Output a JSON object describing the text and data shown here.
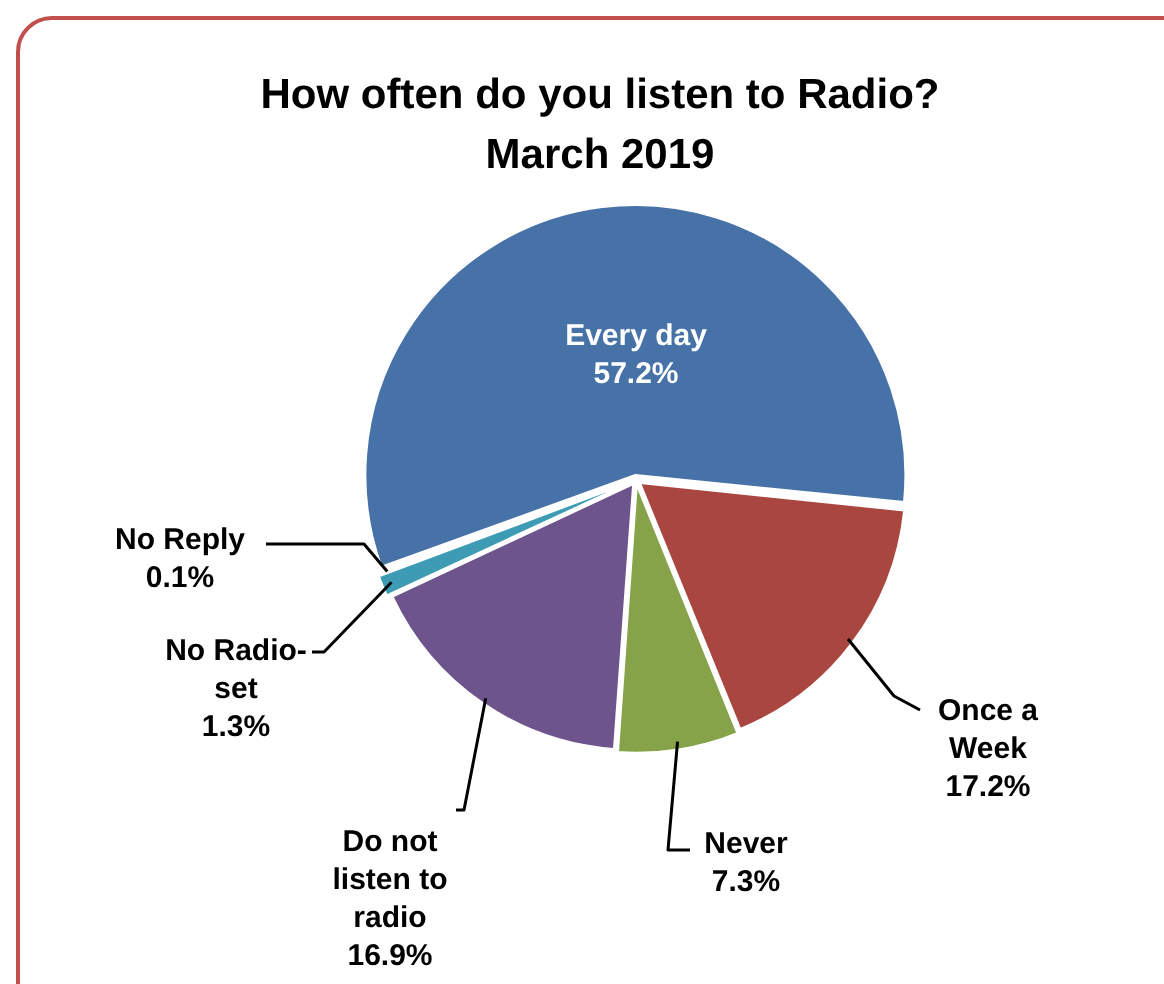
{
  "chart_data": {
    "type": "pie",
    "title": "How often do you listen to Radio?",
    "subtitle": "March 2019",
    "categories": [
      "Every day",
      "Once a Week",
      "Never",
      "Do not listen to radio",
      "No Radio-set",
      "No Reply"
    ],
    "values": [
      57.2,
      17.2,
      7.3,
      16.9,
      1.3,
      0.1
    ],
    "colors": [
      "#4672a8",
      "#a9463f",
      "#86a34a",
      "#6e548d",
      "#3d9bb3",
      "#d9822b"
    ],
    "value_labels": [
      "57.2%",
      "17.2%",
      "7.3%",
      "16.9%",
      "1.3%",
      "0.1%"
    ],
    "legend": false
  }
}
